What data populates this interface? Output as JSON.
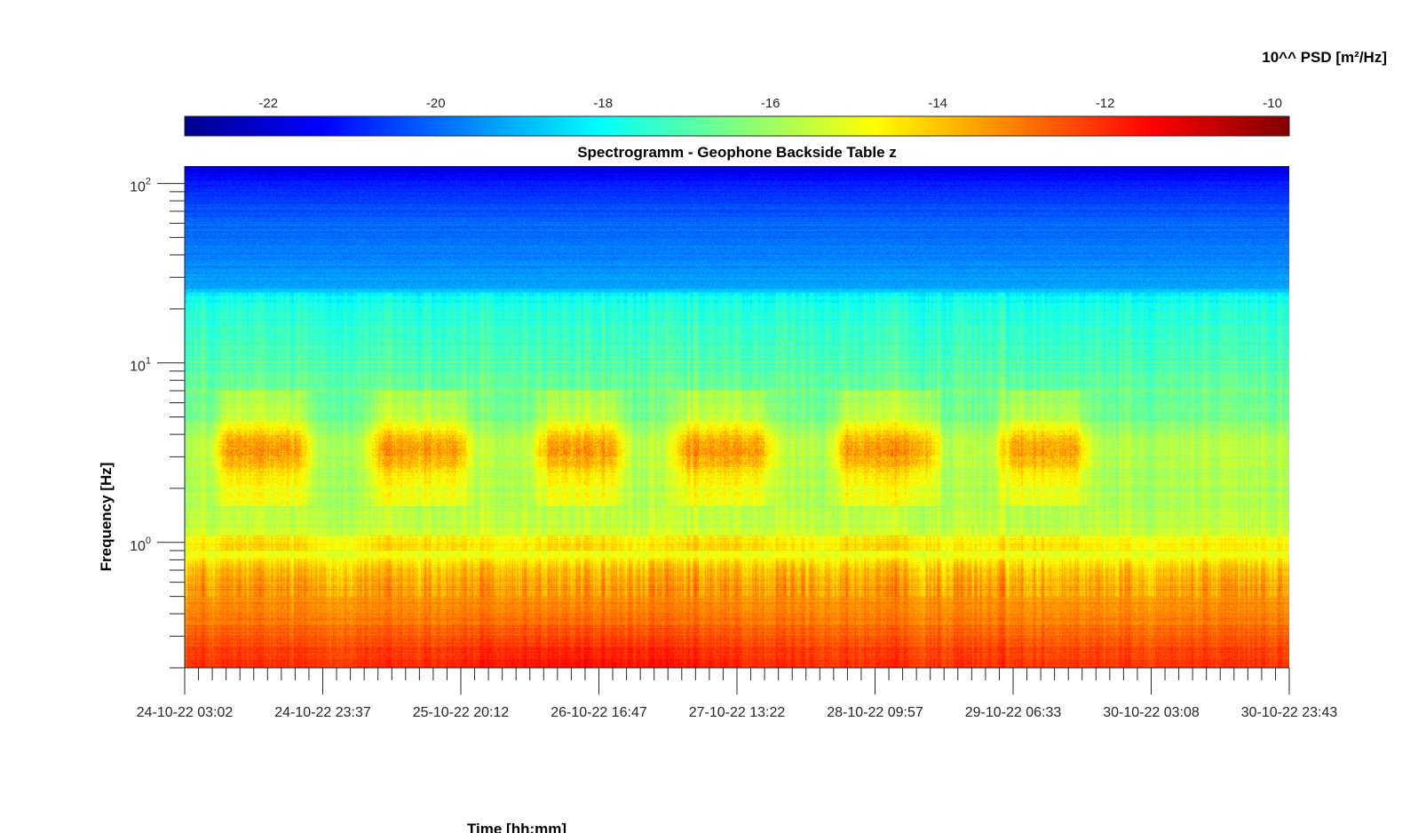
{
  "chart_data": {
    "type": "heatmap",
    "title": "Spectrogramm - Geophone Backside Table z",
    "xlabel": "Time [hh:mm]",
    "ylabel": "Frequency [Hz]",
    "x_tick_labels": [
      "24-10-22 03:02",
      "24-10-22 23:37",
      "25-10-22 20:12",
      "26-10-22 16:47",
      "27-10-22 13:22",
      "28-10-22 09:57",
      "29-10-22 06:33",
      "30-10-22 03:08",
      "30-10-22 23:43"
    ],
    "y_scale": "log",
    "y_tick_values": [
      1,
      10,
      100
    ],
    "y_tick_bases": [
      "10",
      "10",
      "10"
    ],
    "y_tick_exponents": [
      "0",
      "1",
      "2"
    ],
    "ylim": [
      0.2,
      125
    ],
    "colorbar": {
      "title": "10^^ PSD [m²/Hz]",
      "ticks": [
        -22,
        -20,
        -18,
        -16,
        -14,
        -12,
        -10
      ],
      "tick_labels": [
        "-22",
        "-20",
        "-18",
        "-16",
        "-14",
        "-12",
        "-10"
      ],
      "range": [
        -23,
        -9.8
      ],
      "colormap": "jet",
      "position": "top"
    },
    "profile": [
      {
        "f": 125,
        "v": -21.8
      },
      {
        "f": 100,
        "v": -21.0
      },
      {
        "f": 60,
        "v": -20.0
      },
      {
        "f": 30,
        "v": -19.4
      },
      {
        "f": 26,
        "v": -19.1
      },
      {
        "f": 24,
        "v": -18.0
      },
      {
        "f": 18,
        "v": -17.5
      },
      {
        "f": 12,
        "v": -17.2
      },
      {
        "f": 8,
        "v": -16.8
      },
      {
        "f": 5,
        "v": -16.5
      },
      {
        "f": 3.5,
        "v": -15.6
      },
      {
        "f": 2,
        "v": -15.9
      },
      {
        "f": 1.2,
        "v": -15.5
      },
      {
        "f": 0.85,
        "v": -14.9
      },
      {
        "f": 0.7,
        "v": -13.8
      },
      {
        "f": 0.4,
        "v": -13.1
      },
      {
        "f": 0.25,
        "v": -12.3
      },
      {
        "f": 0.2,
        "v": -12.0
      }
    ],
    "activity_periods": [
      {
        "start": 0.04,
        "end": 0.1
      },
      {
        "start": 0.18,
        "end": 0.245
      },
      {
        "start": 0.33,
        "end": 0.385
      },
      {
        "start": 0.455,
        "end": 0.52
      },
      {
        "start": 0.6,
        "end": 0.67
      },
      {
        "start": 0.75,
        "end": 0.805
      }
    ]
  }
}
